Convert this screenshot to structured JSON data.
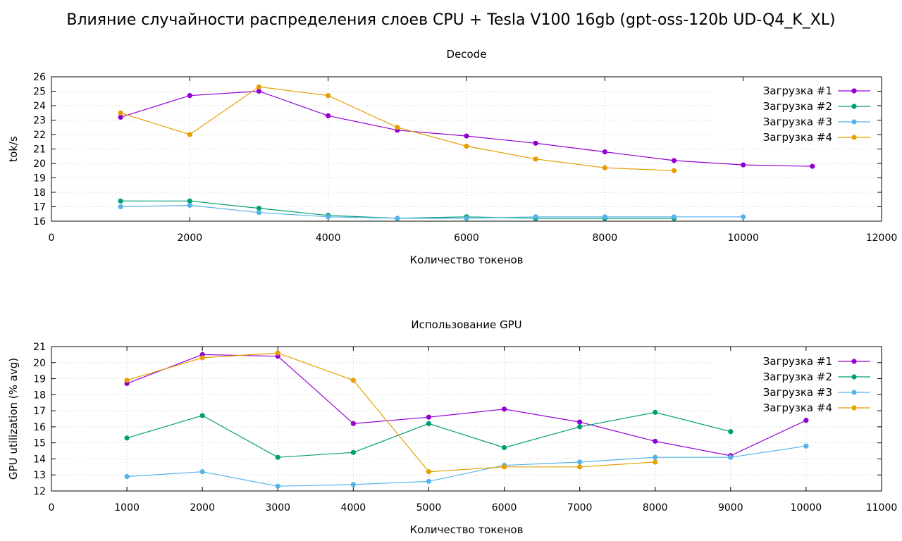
{
  "page": {
    "title": "Влияние случайности распределения слоев CPU + Tesla V100 16gb (gpt-oss-120b UD-Q4_K_XL)"
  },
  "colors": {
    "s1": "#9400d3",
    "s2": "#009e73",
    "s3": "#56b4e9",
    "s4": "#e69f00",
    "grid": "#c8c8c8"
  },
  "chart_data": [
    {
      "type": "line",
      "title": "Decode",
      "xlabel": "Количество токенов",
      "ylabel": "tok/s",
      "xlim": [
        0,
        12000
      ],
      "ylim": [
        16,
        26
      ],
      "xticks": [
        "0",
        "2000",
        "4000",
        "6000",
        "8000",
        "10000",
        "12000"
      ],
      "yticks": [
        "16",
        "17",
        "18",
        "19",
        "20",
        "21",
        "22",
        "23",
        "24",
        "25",
        "26"
      ],
      "grid": true,
      "legend_position": "top-right",
      "series": [
        {
          "name": "Загрузка #1",
          "color": "#9400d3",
          "x": [
            1000,
            2000,
            3000,
            4000,
            5000,
            6000,
            7000,
            8000,
            9000,
            10000,
            11000
          ],
          "y": [
            23.2,
            24.7,
            25.0,
            23.3,
            22.3,
            21.9,
            21.4,
            20.8,
            20.2,
            19.9,
            19.8
          ]
        },
        {
          "name": "Загрузка #2",
          "color": "#009e73",
          "x": [
            1000,
            2000,
            3000,
            4000,
            5000,
            6000,
            7000,
            8000,
            9000
          ],
          "y": [
            17.4,
            17.4,
            16.9,
            16.4,
            16.2,
            16.3,
            16.2,
            16.2,
            16.2
          ]
        },
        {
          "name": "Загрузка #3",
          "color": "#56b4e9",
          "x": [
            1000,
            2000,
            3000,
            4000,
            5000,
            6000,
            7000,
            8000,
            9000,
            10000
          ],
          "y": [
            17.0,
            17.1,
            16.6,
            16.3,
            16.2,
            16.2,
            16.3,
            16.3,
            16.3,
            16.3
          ]
        },
        {
          "name": "Загрузка #4",
          "color": "#e69f00",
          "x": [
            1000,
            2000,
            3000,
            4000,
            5000,
            6000,
            7000,
            8000,
            9000
          ],
          "y": [
            23.5,
            22.0,
            25.3,
            24.7,
            22.5,
            21.2,
            20.3,
            19.7,
            19.5
          ]
        }
      ]
    },
    {
      "type": "line",
      "title": "Использование GPU",
      "xlabel": "Количество токенов",
      "ylabel": "GPU utilization (% avg)",
      "xlim": [
        0,
        11000
      ],
      "ylim": [
        12,
        21
      ],
      "xticks": [
        "0",
        "1000",
        "2000",
        "3000",
        "4000",
        "5000",
        "6000",
        "7000",
        "8000",
        "9000",
        "10000",
        "11000"
      ],
      "yticks": [
        "12",
        "13",
        "14",
        "15",
        "16",
        "17",
        "18",
        "19",
        "20",
        "21"
      ],
      "grid": true,
      "legend_position": "top-right",
      "series": [
        {
          "name": "Загрузка #1",
          "color": "#9400d3",
          "x": [
            1000,
            2000,
            3000,
            4000,
            5000,
            6000,
            7000,
            8000,
            9000,
            10000
          ],
          "y": [
            18.7,
            20.5,
            20.4,
            16.2,
            16.6,
            17.1,
            16.3,
            15.1,
            14.2,
            16.4
          ]
        },
        {
          "name": "Загрузка #2",
          "color": "#009e73",
          "x": [
            1000,
            2000,
            3000,
            4000,
            5000,
            6000,
            7000,
            8000,
            9000
          ],
          "y": [
            15.3,
            16.7,
            14.1,
            14.4,
            16.2,
            14.7,
            16.0,
            16.9,
            15.7
          ]
        },
        {
          "name": "Загрузка #3",
          "color": "#56b4e9",
          "x": [
            1000,
            2000,
            3000,
            4000,
            5000,
            6000,
            7000,
            8000,
            9000,
            10000
          ],
          "y": [
            12.9,
            13.2,
            12.3,
            12.4,
            12.6,
            13.6,
            13.8,
            14.1,
            14.1,
            14.8
          ]
        },
        {
          "name": "Загрузка #4",
          "color": "#e69f00",
          "x": [
            1000,
            2000,
            3000,
            4000,
            5000,
            6000,
            7000,
            8000
          ],
          "y": [
            18.9,
            20.3,
            20.6,
            18.9,
            13.2,
            13.5,
            13.5,
            13.8
          ]
        }
      ]
    }
  ]
}
